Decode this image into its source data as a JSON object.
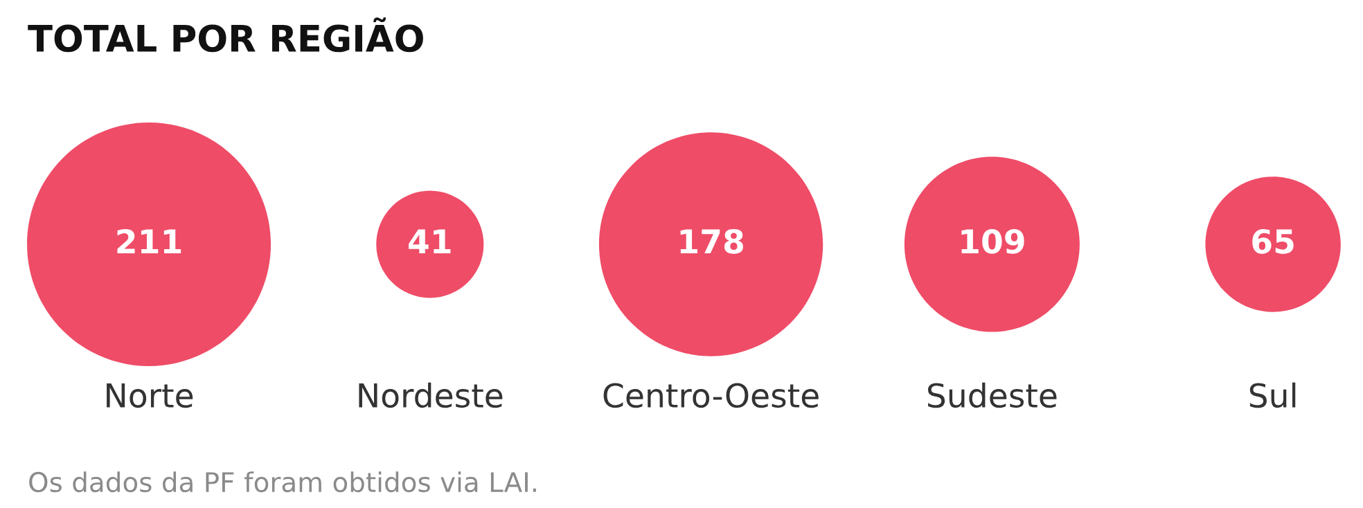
{
  "chart_data": {
    "type": "other",
    "title": "TOTAL POR REGIÃO",
    "categories": [
      "Norte",
      "Nordeste",
      "Centro-Oeste",
      "Sudeste",
      "Sul"
    ],
    "values": [
      211,
      41,
      178,
      109,
      65
    ],
    "color": "#ef4c67",
    "data_labels": true,
    "annotations": [
      "Os dados da PF foram obtidos via LAI."
    ]
  }
}
